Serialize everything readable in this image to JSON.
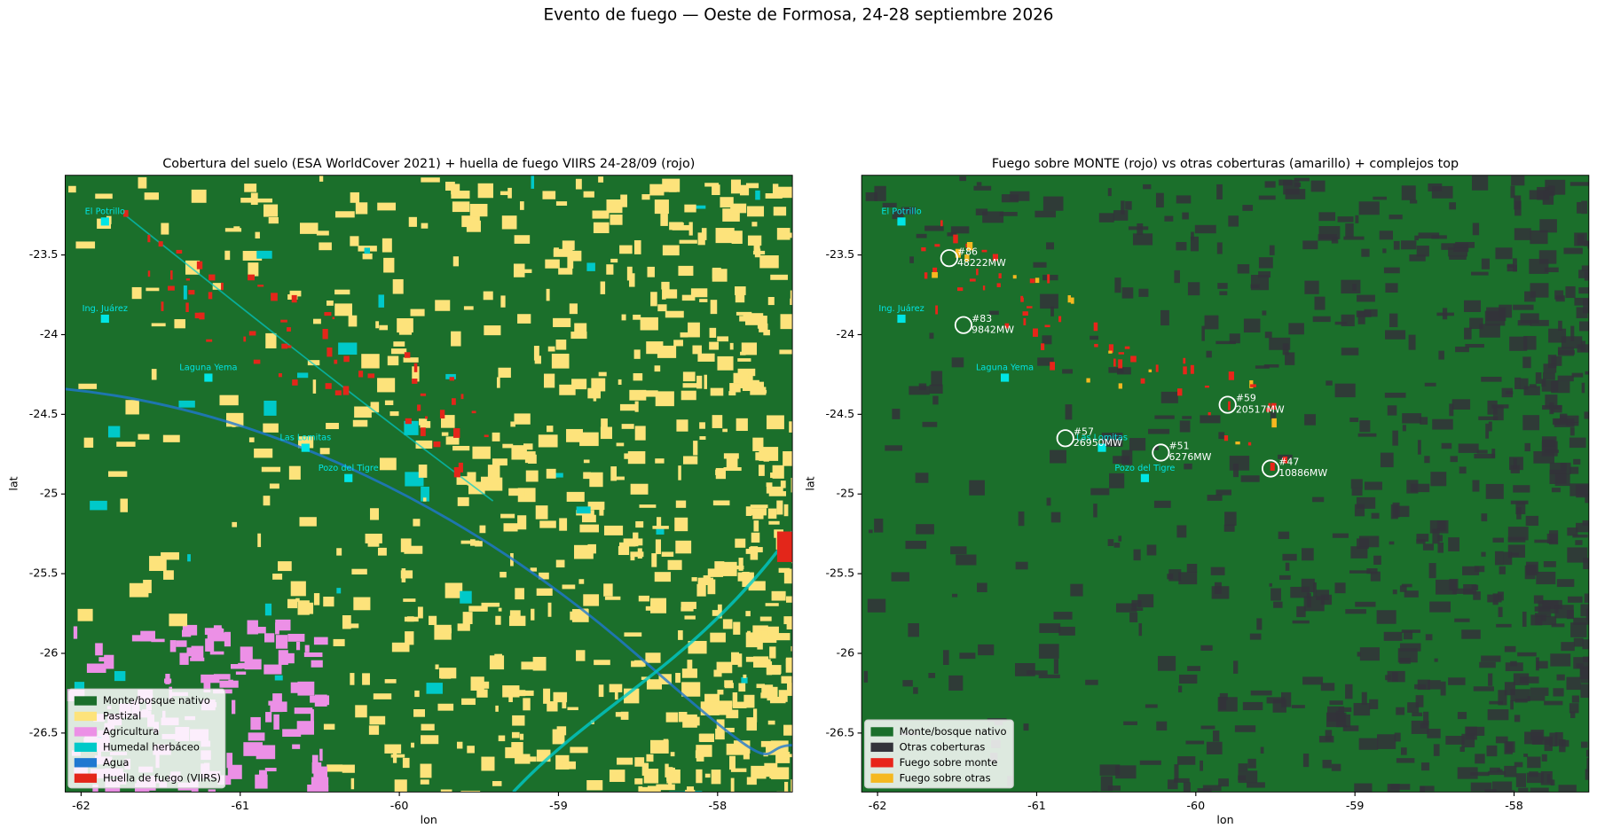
{
  "title": "Evento de fuego — Oeste de Formosa, 24-28 septiembre 2026",
  "chart_data": [
    {
      "type": "map",
      "title": "Cobertura del suelo (ESA WorldCover 2021) + huella de fuego VIIRS 24-28/09 (rojo)",
      "xlabel": "lon",
      "ylabel": "lat",
      "xlim": [
        -62.1,
        -57.53
      ],
      "ylim": [
        -26.87,
        -23.0
      ],
      "xticks": [
        -62,
        -61,
        -60,
        -59,
        -58
      ],
      "yticks": [
        -23.5,
        -24.0,
        -24.5,
        -25.0,
        -25.5,
        -26.0,
        -26.5
      ],
      "background": "landcover",
      "legend": {
        "position": "lower left",
        "entries": [
          {
            "name": "Monte/bosque nativo",
            "color": "#1b6f2b"
          },
          {
            "name": "Pastizal",
            "color": "#fde37b"
          },
          {
            "name": "Agricultura",
            "color": "#ec90e6"
          },
          {
            "name": "Humedal herbáceo",
            "color": "#00c9c9"
          },
          {
            "name": "Agua",
            "color": "#1f78d1"
          },
          {
            "name": "Huella de fuego (VIIRS)",
            "color": "#e3261a"
          }
        ]
      },
      "towns": {
        "color": "#00e5e5",
        "names": [
          "El Potrillo",
          "Ing. Juárez",
          "Laguna Yema",
          "Las Lomitas",
          "Pozo del Tigre"
        ],
        "lon": [
          -61.85,
          -61.85,
          -61.2,
          -60.59,
          -60.32
        ],
        "lat": [
          -23.29,
          -23.9,
          -24.27,
          -24.71,
          -24.9
        ]
      }
    },
    {
      "type": "map",
      "title": "Fuego sobre MONTE (rojo) vs otras coberturas (amarillo) + complejos top",
      "xlabel": "lon",
      "ylabel": "lat",
      "xlim": [
        -62.1,
        -57.53
      ],
      "ylim": [
        -26.87,
        -23.0
      ],
      "xticks": [
        -62,
        -61,
        -60,
        -59,
        -58
      ],
      "yticks": [
        -23.5,
        -24.0,
        -24.5,
        -25.0,
        -25.5,
        -26.0,
        -26.5
      ],
      "background": "fire",
      "legend": {
        "position": "lower left",
        "entries": [
          {
            "name": "Monte/bosque nativo",
            "color": "#1b6f2b"
          },
          {
            "name": "Otras coberturas",
            "color": "#33333a"
          },
          {
            "name": "Fuego sobre monte",
            "color": "#e8251a"
          },
          {
            "name": "Fuego sobre otras",
            "color": "#f5b820"
          }
        ]
      },
      "towns": {
        "color": "#00e5e5",
        "names": [
          "El Potrillo",
          "Ing. Juárez",
          "Laguna Yema",
          "Las Lomitas",
          "Pozo del Tigre"
        ],
        "lon": [
          -61.85,
          -61.85,
          -61.2,
          -60.59,
          -60.32
        ],
        "lat": [
          -23.29,
          -23.9,
          -24.27,
          -24.71,
          -24.9
        ]
      },
      "hotspots": {
        "color": "#ffffff",
        "ids": [
          "#86",
          "#83",
          "#57",
          "#51",
          "#59",
          "#47"
        ],
        "power_labels": [
          "48222MW",
          "9842MW",
          "26950MW",
          "6276MW",
          "20517MW",
          "10886MW"
        ],
        "lon": [
          -61.55,
          -61.46,
          -60.82,
          -60.22,
          -59.8,
          -59.53
        ],
        "lat": [
          -23.52,
          -23.94,
          -24.65,
          -24.74,
          -24.44,
          -24.84
        ]
      }
    }
  ]
}
